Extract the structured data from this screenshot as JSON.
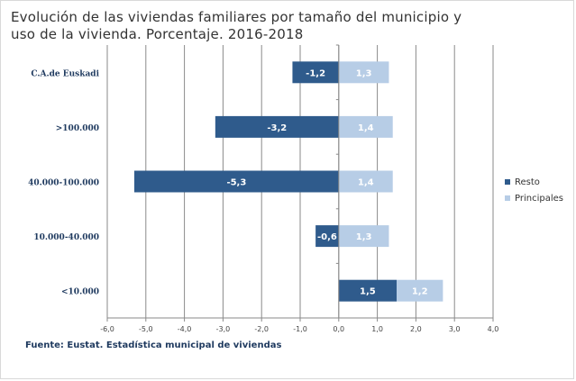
{
  "title_line1": "Evolución de las viviendas familiares por tamaño del municipio y",
  "title_line2": "uso de la vivienda. Porcentaje. 2016-2018",
  "source": "Fuente: Eustat. Estadística municipal de viviendas",
  "chart_data": {
    "type": "bar",
    "orientation": "horizontal",
    "title": "Evolución de las viviendas familiares por tamaño del municipio y uso de la vivienda. Porcentaje. 2016-2018",
    "categories": [
      "C.A.de Euskadi",
      ">100.000",
      "40.000-100.000",
      "10.000-40.000",
      "<10.000"
    ],
    "series": [
      {
        "name": "Resto",
        "color": "#2f5b8c",
        "values": [
          -1.2,
          -3.2,
          -5.3,
          -0.6,
          1.5
        ],
        "labels": [
          "-1,2",
          "-3,2",
          "-5,3",
          "-0,6",
          "1,5"
        ]
      },
      {
        "name": "Principales",
        "color": "#b7cde6",
        "values": [
          1.3,
          1.4,
          1.4,
          1.3,
          1.2
        ],
        "labels": [
          "1,3",
          "1,4",
          "1,4",
          "1,3",
          "1,2"
        ]
      }
    ],
    "xlim": [
      -6,
      4
    ],
    "xticks": [
      -6,
      -5,
      -4,
      -3,
      -2,
      -1,
      0,
      1,
      2,
      3,
      4
    ],
    "xtick_labels": [
      "-6,0",
      "-5,0",
      "-4,0",
      "-3,0",
      "-2,0",
      "-1,0",
      "0,0",
      "1,0",
      "2,0",
      "3,0",
      "4,0"
    ],
    "grid": true,
    "legend_position": "right"
  }
}
